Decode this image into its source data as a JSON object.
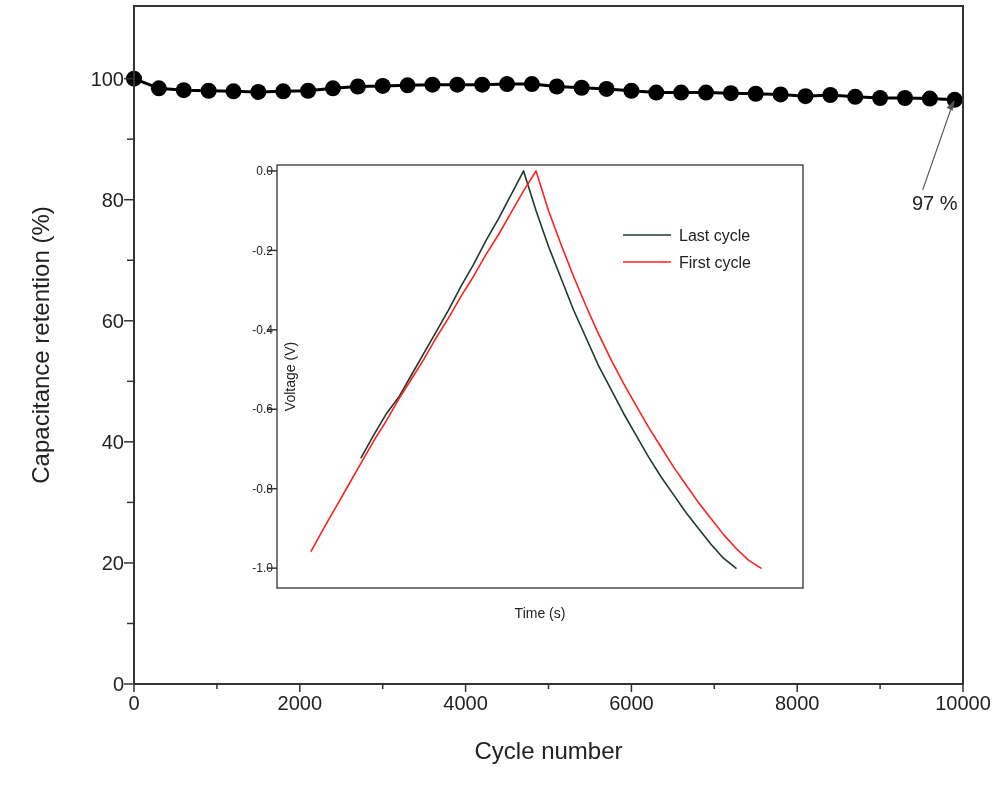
{
  "chart_data": [
    {
      "type": "line",
      "xlabel": "Cycle number",
      "ylabel": "Capacitance retention (%)",
      "marker": "circle",
      "legend": false,
      "grid": false,
      "x": [
        0,
        300,
        600,
        900,
        1200,
        1500,
        1800,
        2100,
        2400,
        2700,
        3000,
        3300,
        3600,
        3900,
        4200,
        4500,
        4800,
        5100,
        5400,
        5700,
        6000,
        6300,
        6600,
        6900,
        7200,
        7500,
        7800,
        8100,
        8400,
        8700,
        9000,
        9300,
        9600,
        9900
      ],
      "series": [
        {
          "color": "#000000",
          "values": [
            100,
            98.4,
            98.1,
            98.0,
            97.9,
            97.8,
            97.9,
            98.0,
            98.4,
            98.7,
            98.8,
            98.9,
            99.0,
            99.0,
            99.0,
            99.1,
            99.1,
            98.7,
            98.5,
            98.3,
            98.0,
            97.7,
            97.7,
            97.7,
            97.6,
            97.5,
            97.4,
            97.1,
            97.3,
            97.0,
            96.8,
            96.8,
            96.7,
            96.5
          ]
        }
      ],
      "xlim": [
        0,
        10000
      ],
      "xticks": [
        0,
        {
          "value": 1000,
          "label": null
        },
        2000,
        {
          "value": 3000,
          "label": null
        },
        4000,
        {
          "value": 5000,
          "label": null
        },
        6000,
        {
          "value": 7000,
          "label": null
        },
        8000,
        {
          "value": 9000,
          "label": null
        },
        10000
      ],
      "ylim": [
        0,
        112
      ],
      "yticks": [
        0,
        {
          "value": 10,
          "label": null
        },
        20,
        {
          "value": 30,
          "label": null
        },
        40,
        {
          "value": 50,
          "label": null
        },
        60,
        {
          "value": 70,
          "label": null
        },
        80,
        {
          "value": 90,
          "label": null
        },
        100
      ],
      "annotations": [
        {
          "text": "97 %",
          "x": 9900,
          "y": 96.5
        }
      ]
    },
    {
      "type": "line",
      "xlabel": "Time (s)",
      "ylabel": "Voltage (V)",
      "legend": "top right",
      "marker": "none",
      "line_style": "solid",
      "tick_labels": "y",
      "categories": [
        null,
        null,
        null,
        null,
        null,
        null,
        null,
        null,
        null,
        null,
        null,
        null,
        null,
        null,
        null,
        null,
        null,
        null,
        null,
        null,
        null,
        null,
        null,
        null,
        null,
        null,
        null,
        null,
        null,
        null,
        null,
        null,
        null,
        null,
        null,
        null,
        null
      ],
      "series": [
        {
          "name": "Last cycle",
          "color": "#1f3a2a",
          "values": [
            null,
            null,
            null,
            null,
            -0.722,
            -0.665,
            -0.612,
            -0.57,
            -0.515,
            -0.46,
            -0.405,
            -0.35,
            -0.29,
            -0.235,
            -0.175,
            -0.12,
            -0.06,
            0.0,
            -0.1,
            -0.19,
            -0.27,
            -0.35,
            -0.42,
            -0.49,
            -0.55,
            -0.61,
            -0.665,
            -0.72,
            -0.77,
            -0.815,
            -0.86,
            -0.9,
            -0.94,
            -0.975,
            -1.0,
            null,
            null
          ]
        },
        {
          "name": "First cycle",
          "color": "#ff2020",
          "values": [
            -0.957,
            -0.9,
            -0.845,
            -0.79,
            -0.735,
            -0.68,
            -0.63,
            -0.575,
            -0.525,
            -0.475,
            -0.42,
            -0.37,
            -0.315,
            -0.265,
            -0.21,
            -0.16,
            -0.105,
            -0.05,
            0.0,
            -0.1,
            -0.185,
            -0.265,
            -0.34,
            -0.41,
            -0.475,
            -0.535,
            -0.59,
            -0.645,
            -0.695,
            -0.745,
            -0.79,
            -0.835,
            -0.875,
            -0.915,
            -0.95,
            -0.98,
            -1.0
          ]
        }
      ],
      "ylim": [
        -1.05,
        0.015
      ],
      "yticks": [
        {
          "value": 0,
          "label": "0.0"
        },
        {
          "value": -0.2,
          "label": "-0.2"
        },
        {
          "value": -0.4,
          "label": "-0.4"
        },
        {
          "value": -0.6,
          "label": "-0.6"
        },
        {
          "value": -0.8,
          "label": "-0.8"
        },
        {
          "value": -1.0,
          "label": "-1.0"
        }
      ]
    }
  ]
}
